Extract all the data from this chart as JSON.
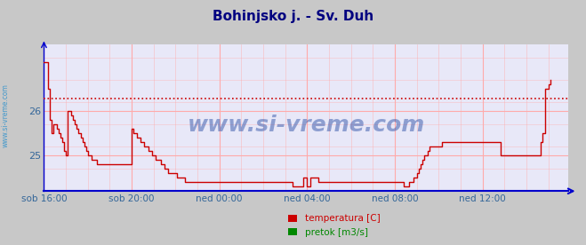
{
  "title": "Bohinjsko j. - Sv. Duh",
  "title_color": "#000080",
  "title_fontsize": 11,
  "bg_color": "#c8c8c8",
  "plot_bg_color": "#e8e8f8",
  "grid_color": "#ffaaaa",
  "watermark": "www.si-vreme.com",
  "watermark_color": "#3355aa",
  "yticks": [
    25,
    26
  ],
  "ylim": [
    24.2,
    27.5
  ],
  "xlim": [
    0,
    287
  ],
  "xtick_labels": [
    "sob 16:00",
    "sob 20:00",
    "ned 00:00",
    "ned 04:00",
    "ned 08:00",
    "ned 12:00"
  ],
  "xtick_positions": [
    0,
    48,
    96,
    144,
    192,
    240
  ],
  "avg_line_y": 26.27,
  "avg_line_color": "#cc0000",
  "line_color": "#cc0000",
  "line_color2": "#008800",
  "legend_labels": [
    "temperatura [C]",
    "pretok [m3/s]"
  ],
  "legend_colors": [
    "#cc0000",
    "#008800"
  ],
  "axis_color": "#0000cc",
  "rotated_label": "www.si-vreme.com",
  "rotated_label_color": "#4499cc",
  "temperatura": [
    27.1,
    27.1,
    26.5,
    25.8,
    25.5,
    25.7,
    25.7,
    25.6,
    25.5,
    25.4,
    25.3,
    25.1,
    25.0,
    26.0,
    26.0,
    25.9,
    25.8,
    25.7,
    25.6,
    25.5,
    25.4,
    25.3,
    25.2,
    25.1,
    25.0,
    25.0,
    24.9,
    24.9,
    24.9,
    24.8,
    24.8,
    24.8,
    24.8,
    24.8,
    24.8,
    24.8,
    24.8,
    24.8,
    24.8,
    24.8,
    24.8,
    24.8,
    24.8,
    24.8,
    24.8,
    24.8,
    24.8,
    24.8,
    25.6,
    25.5,
    25.5,
    25.4,
    25.4,
    25.3,
    25.3,
    25.2,
    25.2,
    25.1,
    25.1,
    25.0,
    25.0,
    24.9,
    24.9,
    24.9,
    24.8,
    24.8,
    24.7,
    24.7,
    24.6,
    24.6,
    24.6,
    24.6,
    24.6,
    24.5,
    24.5,
    24.5,
    24.5,
    24.4,
    24.4,
    24.4,
    24.4,
    24.4,
    24.4,
    24.4,
    24.4,
    24.4,
    24.4,
    24.4,
    24.4,
    24.4,
    24.4,
    24.4,
    24.4,
    24.4,
    24.4,
    24.4,
    24.4,
    24.4,
    24.4,
    24.4,
    24.4,
    24.4,
    24.4,
    24.4,
    24.4,
    24.4,
    24.4,
    24.4,
    24.4,
    24.4,
    24.4,
    24.4,
    24.4,
    24.4,
    24.4,
    24.4,
    24.4,
    24.4,
    24.4,
    24.4,
    24.4,
    24.4,
    24.4,
    24.4,
    24.4,
    24.4,
    24.4,
    24.4,
    24.4,
    24.4,
    24.4,
    24.4,
    24.4,
    24.4,
    24.4,
    24.4,
    24.3,
    24.3,
    24.3,
    24.3,
    24.3,
    24.3,
    24.5,
    24.5,
    24.3,
    24.3,
    24.5,
    24.5,
    24.5,
    24.5,
    24.4,
    24.4,
    24.4,
    24.4,
    24.4,
    24.4,
    24.4,
    24.4,
    24.4,
    24.4,
    24.4,
    24.4,
    24.4,
    24.4,
    24.4,
    24.4,
    24.4,
    24.4,
    24.4,
    24.4,
    24.4,
    24.4,
    24.4,
    24.4,
    24.4,
    24.4,
    24.4,
    24.4,
    24.4,
    24.4,
    24.4,
    24.4,
    24.4,
    24.4,
    24.4,
    24.4,
    24.4,
    24.4,
    24.4,
    24.4,
    24.4,
    24.4,
    24.4,
    24.4,
    24.4,
    24.4,
    24.4,
    24.3,
    24.3,
    24.3,
    24.4,
    24.4,
    24.5,
    24.5,
    24.6,
    24.7,
    24.8,
    24.9,
    25.0,
    25.0,
    25.1,
    25.2,
    25.2,
    25.2,
    25.2,
    25.2,
    25.2,
    25.2,
    25.3,
    25.3,
    25.3,
    25.3,
    25.3,
    25.3,
    25.3,
    25.3,
    25.3,
    25.3,
    25.3,
    25.3,
    25.3,
    25.3,
    25.3,
    25.3,
    25.3,
    25.3,
    25.3,
    25.3,
    25.3,
    25.3,
    25.3,
    25.3,
    25.3,
    25.3,
    25.3,
    25.3,
    25.3,
    25.3,
    25.3,
    25.3,
    25.0,
    25.0,
    25.0,
    25.0,
    25.0,
    25.0,
    25.0,
    25.0,
    25.0,
    25.0,
    25.0,
    25.0,
    25.0,
    25.0,
    25.0,
    25.0,
    25.0,
    25.0,
    25.0,
    25.0,
    25.0,
    25.0,
    25.3,
    25.5,
    26.5,
    26.5,
    26.6,
    26.7
  ]
}
